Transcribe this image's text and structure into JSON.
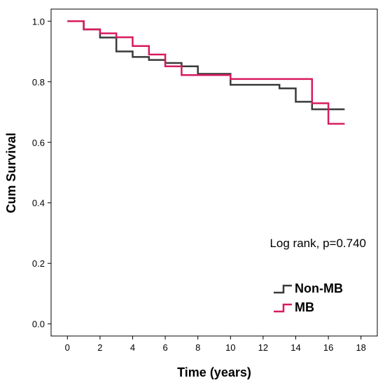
{
  "chart_data": {
    "type": "line",
    "title": "",
    "xlabel": "Time (years)",
    "ylabel": "Cum Survival",
    "xlim": [
      -1,
      19
    ],
    "ylim": [
      -0.04,
      1.04
    ],
    "x_ticks": [
      0,
      2,
      4,
      6,
      8,
      10,
      12,
      14,
      16,
      18
    ],
    "y_ticks": [
      0.0,
      0.2,
      0.4,
      0.6,
      0.8,
      1.0
    ],
    "y_tick_labels": [
      "0.0",
      "0.2",
      "0.4",
      "0.6",
      "0.8",
      "1.0"
    ],
    "grid": false,
    "step": true,
    "legend_position": "bottom-right",
    "annotation": "Log rank, p=0.740",
    "series": [
      {
        "name": "Non-MB",
        "color": "#3a3a3a",
        "x": [
          0,
          1,
          2,
          3,
          4,
          5,
          6,
          7,
          8,
          10,
          13,
          14,
          15,
          17
        ],
        "y": [
          1.0,
          0.973,
          0.946,
          0.9,
          0.882,
          0.872,
          0.862,
          0.851,
          0.826,
          0.79,
          0.778,
          0.734,
          0.709,
          0.709
        ]
      },
      {
        "name": "MB",
        "color": "#d81b60",
        "x": [
          0,
          1,
          2,
          3,
          4,
          5,
          6,
          7,
          8,
          10,
          15,
          16,
          17
        ],
        "y": [
          1.0,
          0.973,
          0.96,
          0.947,
          0.918,
          0.89,
          0.851,
          0.822,
          0.822,
          0.809,
          0.729,
          0.661,
          0.661
        ]
      }
    ]
  }
}
